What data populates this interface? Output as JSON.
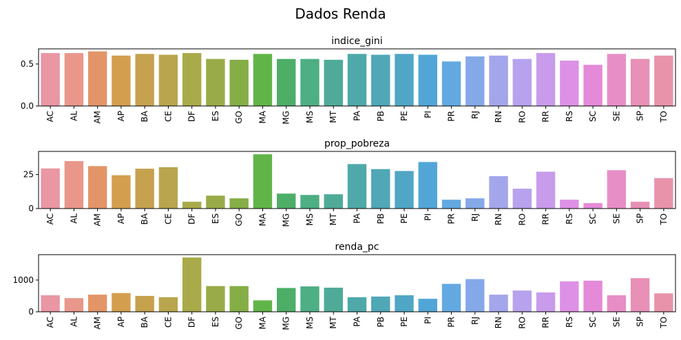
{
  "title": "Dados Renda",
  "chart_data": [
    {
      "type": "bar",
      "title": "indice_gini",
      "xlabel": "",
      "ylabel": "",
      "ylim": [
        0,
        0.68
      ],
      "yticks": [
        "0.0",
        "0.5"
      ],
      "ytick_values": [
        0,
        0.5
      ],
      "categories": [
        "AC",
        "AL",
        "AM",
        "AP",
        "BA",
        "CE",
        "DF",
        "ES",
        "GO",
        "MA",
        "MG",
        "MS",
        "MT",
        "PA",
        "PB",
        "PE",
        "PI",
        "PR",
        "RJ",
        "RN",
        "RO",
        "RR",
        "RS",
        "SC",
        "SE",
        "SP",
        "TO"
      ],
      "values": [
        0.63,
        0.63,
        0.65,
        0.6,
        0.62,
        0.61,
        0.63,
        0.56,
        0.55,
        0.62,
        0.56,
        0.56,
        0.55,
        0.62,
        0.61,
        0.62,
        0.61,
        0.53,
        0.59,
        0.6,
        0.56,
        0.63,
        0.54,
        0.49,
        0.62,
        0.56,
        0.6
      ]
    },
    {
      "type": "bar",
      "title": "prop_pobreza",
      "xlabel": "",
      "ylabel": "",
      "ylim": [
        0,
        42
      ],
      "yticks": [
        "0",
        "25"
      ],
      "ytick_values": [
        0,
        25
      ],
      "categories": [
        "AC",
        "AL",
        "AM",
        "AP",
        "BA",
        "CE",
        "DF",
        "ES",
        "GO",
        "MA",
        "MG",
        "MS",
        "MT",
        "PA",
        "PB",
        "PE",
        "PI",
        "PR",
        "RJ",
        "RN",
        "RO",
        "RR",
        "RS",
        "SC",
        "SE",
        "SP",
        "TO"
      ],
      "values": [
        29.5,
        34.9,
        31.2,
        24.5,
        29.3,
        30.4,
        5.0,
        9.5,
        7.5,
        39.9,
        11.0,
        10.0,
        10.5,
        32.7,
        29.0,
        27.6,
        34.2,
        6.5,
        7.5,
        23.8,
        14.6,
        27.1,
        6.5,
        4.0,
        28.2,
        5.0,
        22.4
      ]
    },
    {
      "type": "bar",
      "title": "renda_pc",
      "xlabel": "",
      "ylabel": "",
      "ylim": [
        0,
        1800
      ],
      "yticks": [
        "0",
        "1000"
      ],
      "ytick_values": [
        0,
        1000
      ],
      "categories": [
        "AC",
        "AL",
        "AM",
        "AP",
        "BA",
        "CE",
        "DF",
        "ES",
        "GO",
        "MA",
        "MG",
        "MS",
        "MT",
        "PA",
        "PB",
        "PE",
        "PI",
        "PR",
        "RJ",
        "RN",
        "RO",
        "RR",
        "RS",
        "SC",
        "SE",
        "SP",
        "TO"
      ],
      "values": [
        520,
        430,
        540,
        590,
        500,
        460,
        1710,
        810,
        810,
        360,
        750,
        800,
        760,
        460,
        480,
        520,
        410,
        880,
        1030,
        540,
        670,
        610,
        960,
        980,
        520,
        1060,
        580
      ]
    }
  ],
  "colors": [
    "#ea96a3",
    "#e9978a",
    "#e39567",
    "#d39f4f",
    "#c6a24e",
    "#b8a54d",
    "#a9aa49",
    "#99ab48",
    "#85ae47",
    "#61b548",
    "#4dae68",
    "#4eae84",
    "#4fab97",
    "#4fa9a8",
    "#50a7b6",
    "#50a6c5",
    "#52a6d7",
    "#63a9e1",
    "#85a9e8",
    "#a3a6eb",
    "#b7a2ed",
    "#c89beb",
    "#dd91e6",
    "#e58ad9",
    "#e88ec7",
    "#e890b6",
    "#e993ab"
  ]
}
